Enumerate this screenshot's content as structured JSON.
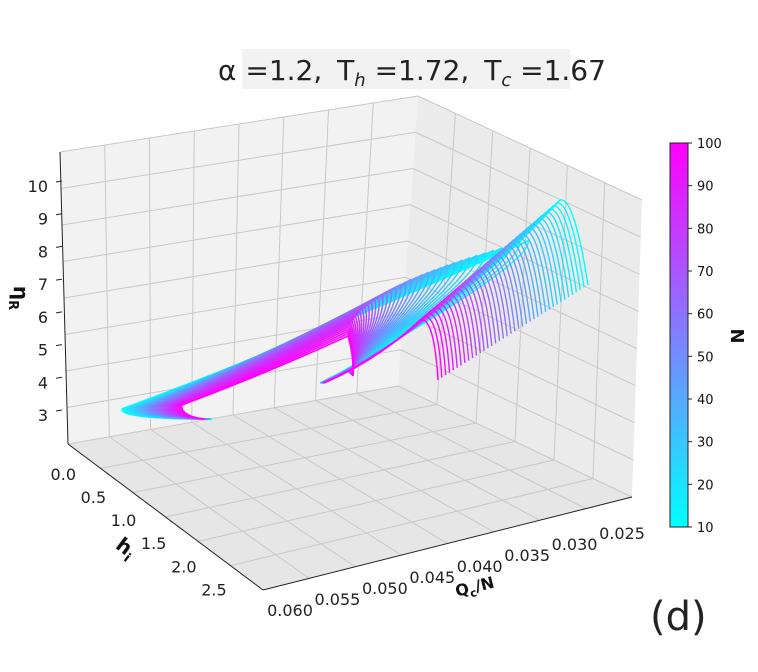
{
  "chart_data": {
    "type": "line",
    "projection": "3d",
    "title_parts": {
      "alpha": "α =1.2,",
      "th": "T",
      "th_sub": "h",
      "th_val": " =1.72,",
      "tc": "T",
      "tc_sub": "c",
      "tc_val": " =1.67"
    },
    "panel_label": "(d)",
    "axes": {
      "x": {
        "label": "Q",
        "label_sub": "c",
        "label_tail": "/N",
        "ticks": [
          "0.060",
          "0.055",
          "0.050",
          "0.045",
          "0.040",
          "0.035",
          "0.030",
          "0.025"
        ],
        "range": [
          0.025,
          0.06
        ]
      },
      "y": {
        "label": "h",
        "label_sub": "i",
        "ticks": [
          "0.0",
          "0.5",
          "1.0",
          "1.5",
          "2.0",
          "2.5"
        ],
        "range": [
          0.0,
          2.7
        ]
      },
      "z": {
        "label": "η",
        "label_sub": "R",
        "ticks": [
          "3",
          "4",
          "5",
          "6",
          "7",
          "8",
          "9",
          "10"
        ],
        "range": [
          2.5,
          10.5
        ]
      }
    },
    "colorbar": {
      "label": "N",
      "ticks": [
        "100",
        "90",
        "80",
        "70",
        "60",
        "50",
        "40",
        "30",
        "20",
        "10"
      ],
      "range": [
        10,
        100
      ],
      "colormap": [
        "#00ffff",
        "#ff00ff"
      ]
    },
    "series_description": "Family of curves eta_R vs (Q_c/N, h_i), one per N from 10 (cyan) to 100 (magenta)",
    "grid": true
  }
}
